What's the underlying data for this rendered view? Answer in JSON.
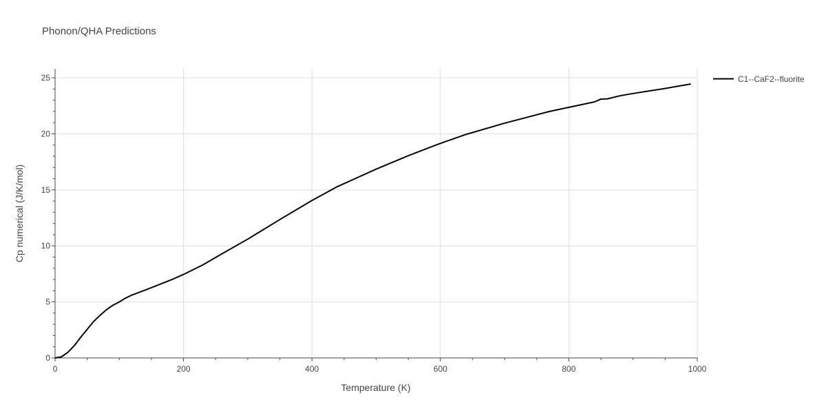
{
  "chart_data": {
    "type": "line",
    "title": "Phonon/QHA Predictions",
    "xlabel": "Temperature (K)",
    "ylabel": "Cp numerical (J/K/mol)",
    "xlim": [
      0,
      1000
    ],
    "ylim": [
      0,
      25.8
    ],
    "x_ticks": [
      0,
      200,
      400,
      600,
      800,
      1000
    ],
    "y_ticks": [
      0,
      5,
      10,
      15,
      20,
      25
    ],
    "grid": true,
    "legend_position": "top-right",
    "series": [
      {
        "name": "C1--CaF2--fluorite",
        "color": "#000000",
        "x": [
          0,
          10,
          20,
          30,
          40,
          50,
          60,
          70,
          80,
          90,
          100,
          110,
          120,
          140,
          160,
          180,
          200,
          230,
          260,
          300,
          350,
          400,
          440,
          500,
          550,
          600,
          640,
          700,
          770,
          840,
          850,
          860,
          880,
          900,
          950,
          990
        ],
        "y": [
          0,
          0.1,
          0.5,
          1.1,
          1.85,
          2.55,
          3.25,
          3.8,
          4.3,
          4.7,
          5.0,
          5.35,
          5.62,
          6.05,
          6.5,
          6.95,
          7.45,
          8.3,
          9.3,
          10.6,
          12.35,
          14.05,
          15.3,
          16.85,
          18.05,
          19.15,
          19.95,
          20.95,
          22.0,
          22.85,
          23.1,
          23.12,
          23.4,
          23.6,
          24.05,
          24.45
        ]
      }
    ]
  }
}
